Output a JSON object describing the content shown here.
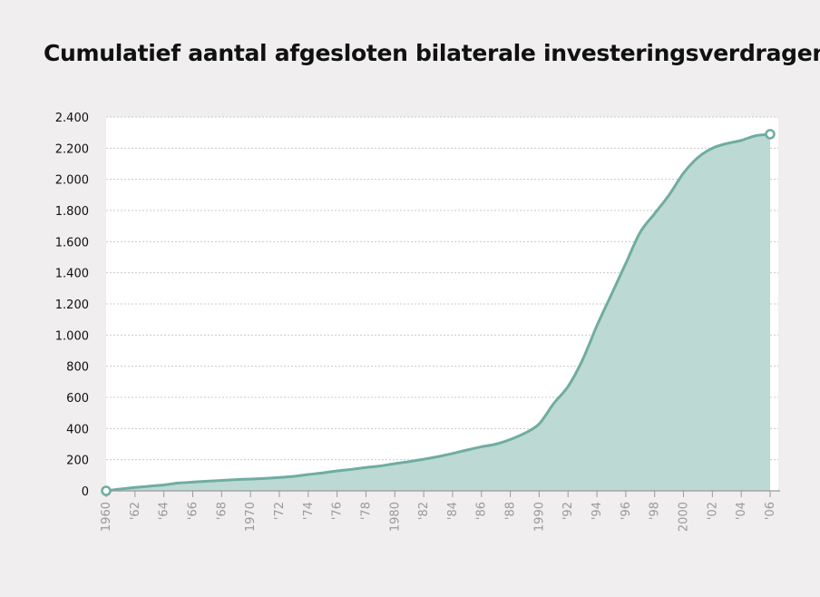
{
  "title": "Cumulatief aantal afgesloten bilaterale investeringsverdragen",
  "chart_data": {
    "type": "area",
    "title": "Cumulatief aantal afgesloten bilaterale investeringsverdragen",
    "xlabel": "",
    "ylabel": "",
    "x": [
      1960,
      1961,
      1962,
      1963,
      1964,
      1965,
      1966,
      1967,
      1968,
      1969,
      1970,
      1971,
      1972,
      1973,
      1974,
      1975,
      1976,
      1977,
      1978,
      1979,
      1980,
      1981,
      1982,
      1983,
      1984,
      1985,
      1986,
      1987,
      1988,
      1989,
      1990,
      1991,
      1992,
      1993,
      1994,
      1995,
      1996,
      1997,
      1998,
      1999,
      2000,
      2001,
      2002,
      2003,
      2004,
      2005,
      2006
    ],
    "values": [
      0,
      12,
      22,
      30,
      38,
      50,
      56,
      62,
      67,
      72,
      76,
      80,
      86,
      93,
      105,
      115,
      128,
      138,
      150,
      160,
      175,
      188,
      203,
      220,
      240,
      262,
      283,
      300,
      330,
      370,
      430,
      560,
      670,
      840,
      1060,
      1260,
      1460,
      1660,
      1780,
      1900,
      2040,
      2140,
      2200,
      2230,
      2250,
      2280,
      2290
    ],
    "ylim": [
      0,
      2400
    ],
    "xlim": [
      1960,
      2006
    ],
    "y_ticks": [
      0,
      200,
      400,
      600,
      800,
      1000,
      1200,
      1400,
      1600,
      1800,
      2000,
      2200,
      2400
    ],
    "y_tick_labels": [
      "0",
      "200",
      "400",
      "600",
      "800",
      "1.000",
      "1.200",
      "1.400",
      "1.600",
      "1.800",
      "2.000",
      "2.200",
      "2.400"
    ],
    "x_ticks": [
      1960,
      1962,
      1964,
      1966,
      1968,
      1970,
      1972,
      1974,
      1976,
      1978,
      1980,
      1982,
      1984,
      1986,
      1988,
      1990,
      1992,
      1994,
      1996,
      1998,
      2000,
      2002,
      2004,
      2006
    ],
    "x_tick_labels": [
      "1960",
      "'62",
      "'64",
      "'66",
      "'68",
      "1970",
      "'72",
      "'74",
      "'76",
      "'78",
      "1980",
      "'82",
      "'84",
      "'86",
      "'88",
      "1990",
      "'92",
      "'94",
      "'96",
      "'98",
      "2000",
      "'02",
      "'04",
      "'06"
    ],
    "grid": true,
    "fill_color": "#bcd9d3",
    "line_color": "#6fada0",
    "plot_background": "#ffffff"
  }
}
